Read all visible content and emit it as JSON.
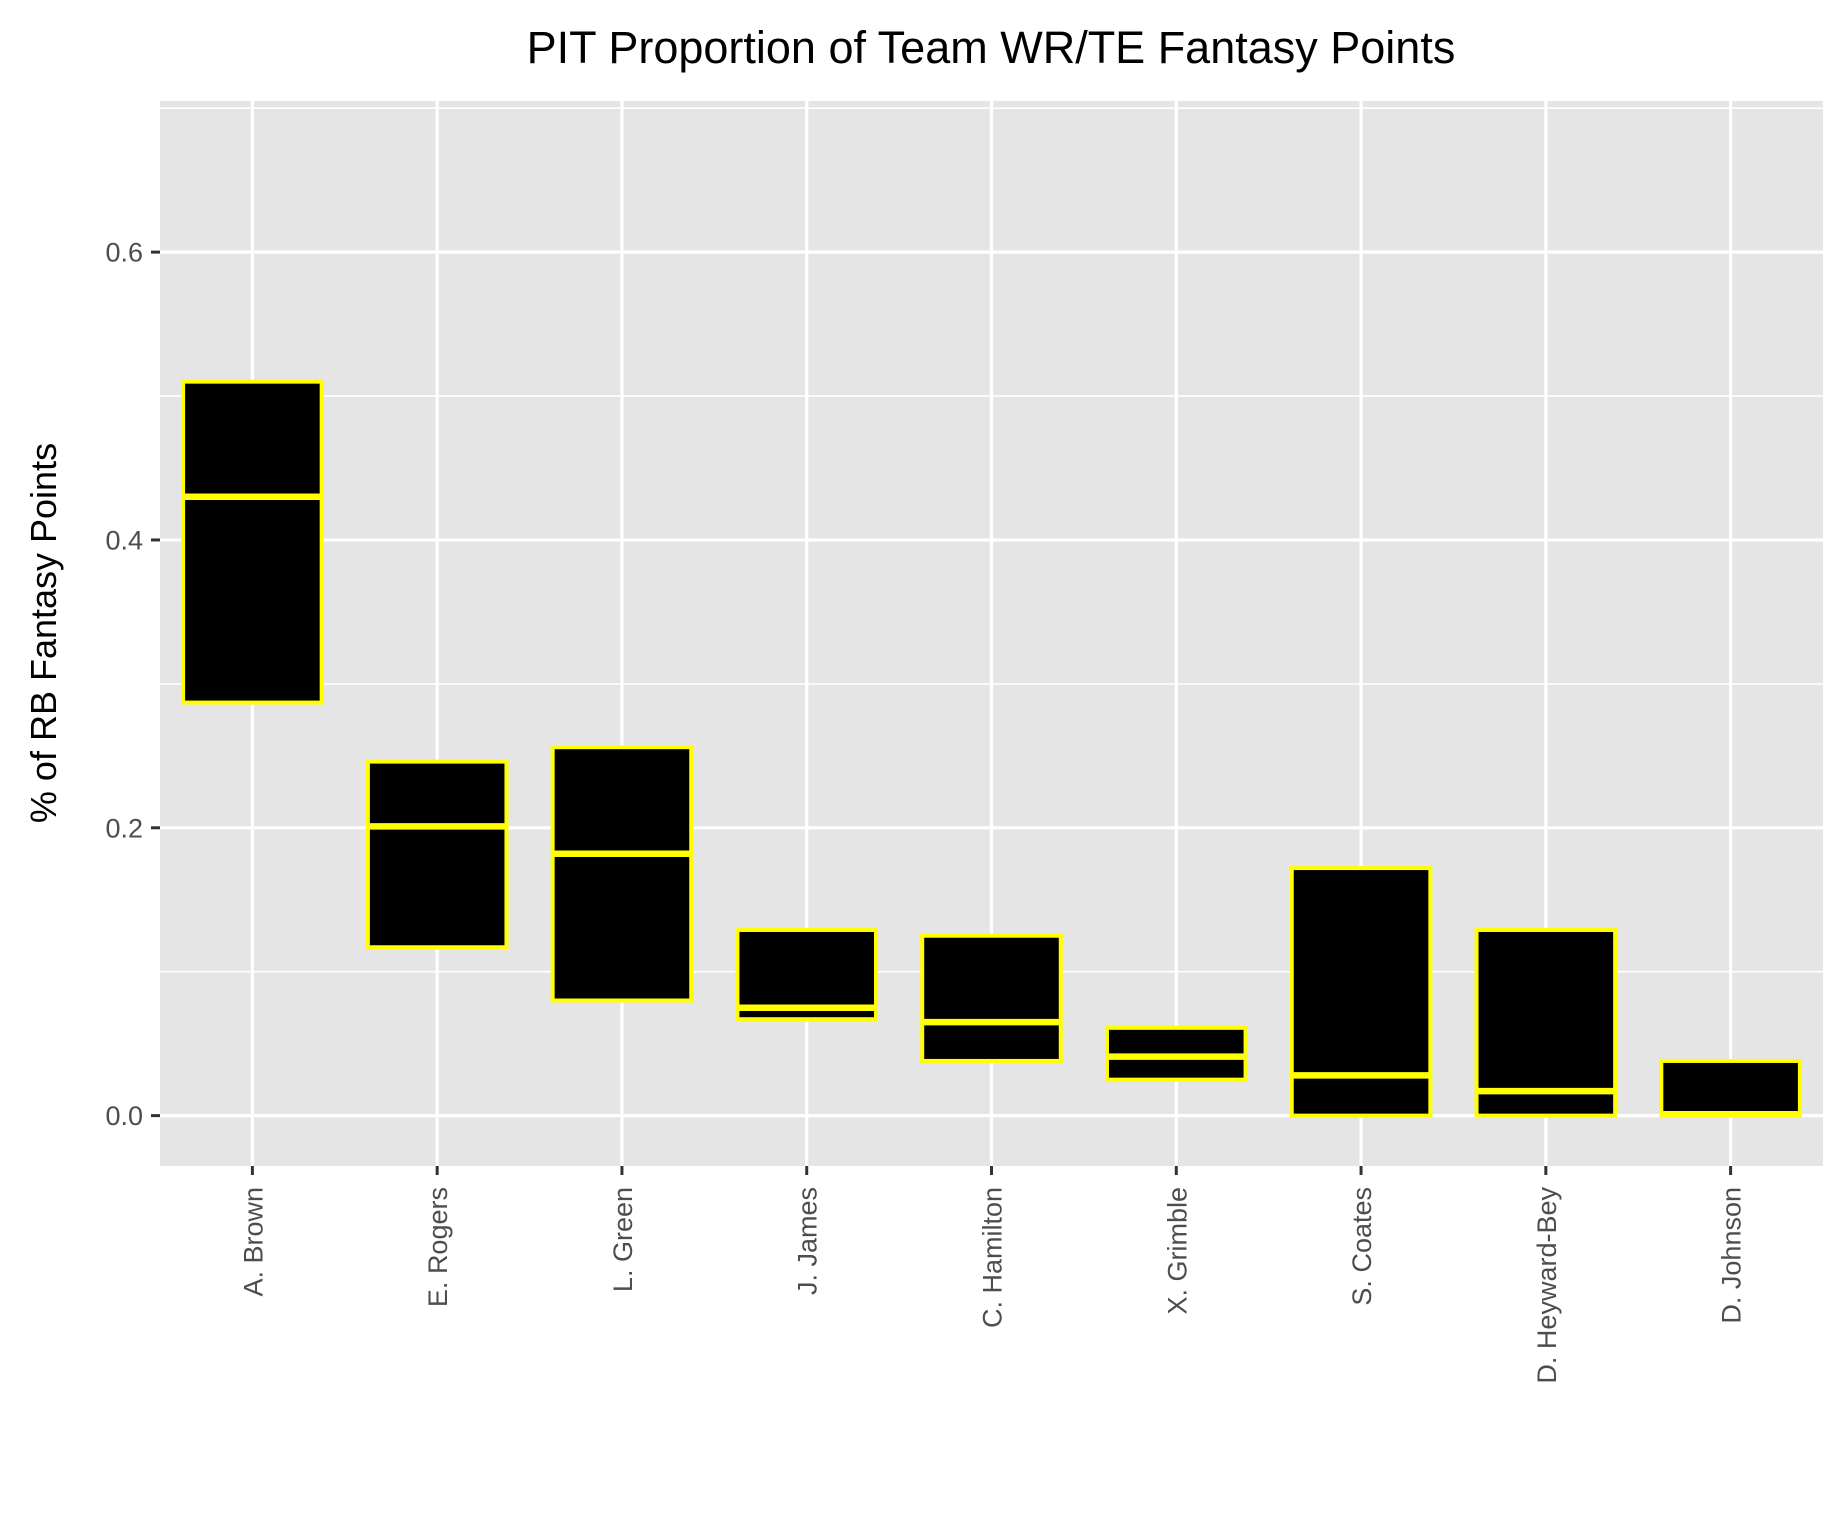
{
  "chart_data": {
    "type": "boxplot",
    "title": "PIT Proportion of Team WR/TE Fantasy Points",
    "xlabel": "",
    "ylabel": "% of RB Fantasy Points",
    "ylim": [
      -0.035,
      0.705
    ],
    "y_ticks": [
      0.0,
      0.2,
      0.4,
      0.6
    ],
    "y_tick_labels": [
      "0.0",
      "0.2",
      "0.4",
      "0.6"
    ],
    "grid": true,
    "panel_background": "#e5e5e5",
    "grid_color": "#ffffff",
    "box_fill": "#000000",
    "box_outline": "#ffff00",
    "categories": [
      "A. Brown",
      "E. Rogers",
      "L. Green",
      "J. James",
      "C. Hamilton",
      "X. Grimble",
      "S. Coates",
      "D. Heyward-Bey",
      "D. Johnson"
    ],
    "boxes": [
      {
        "name": "A. Brown",
        "q1": 0.287,
        "median": 0.43,
        "q3": 0.51
      },
      {
        "name": "E. Rogers",
        "q1": 0.117,
        "median": 0.201,
        "q3": 0.246
      },
      {
        "name": "L. Green",
        "q1": 0.08,
        "median": 0.182,
        "q3": 0.256
      },
      {
        "name": "J. James",
        "q1": 0.067,
        "median": 0.075,
        "q3": 0.129
      },
      {
        "name": "C. Hamilton",
        "q1": 0.038,
        "median": 0.065,
        "q3": 0.125
      },
      {
        "name": "X. Grimble",
        "q1": 0.025,
        "median": 0.041,
        "q3": 0.061
      },
      {
        "name": "S. Coates",
        "q1": 0.0,
        "median": 0.028,
        "q3": 0.172
      },
      {
        "name": "D. Heyward-Bey",
        "q1": 0.0,
        "median": 0.017,
        "q3": 0.129
      },
      {
        "name": "D. Johnson",
        "q1": 0.0,
        "median": 0.001,
        "q3": 0.038
      }
    ]
  }
}
